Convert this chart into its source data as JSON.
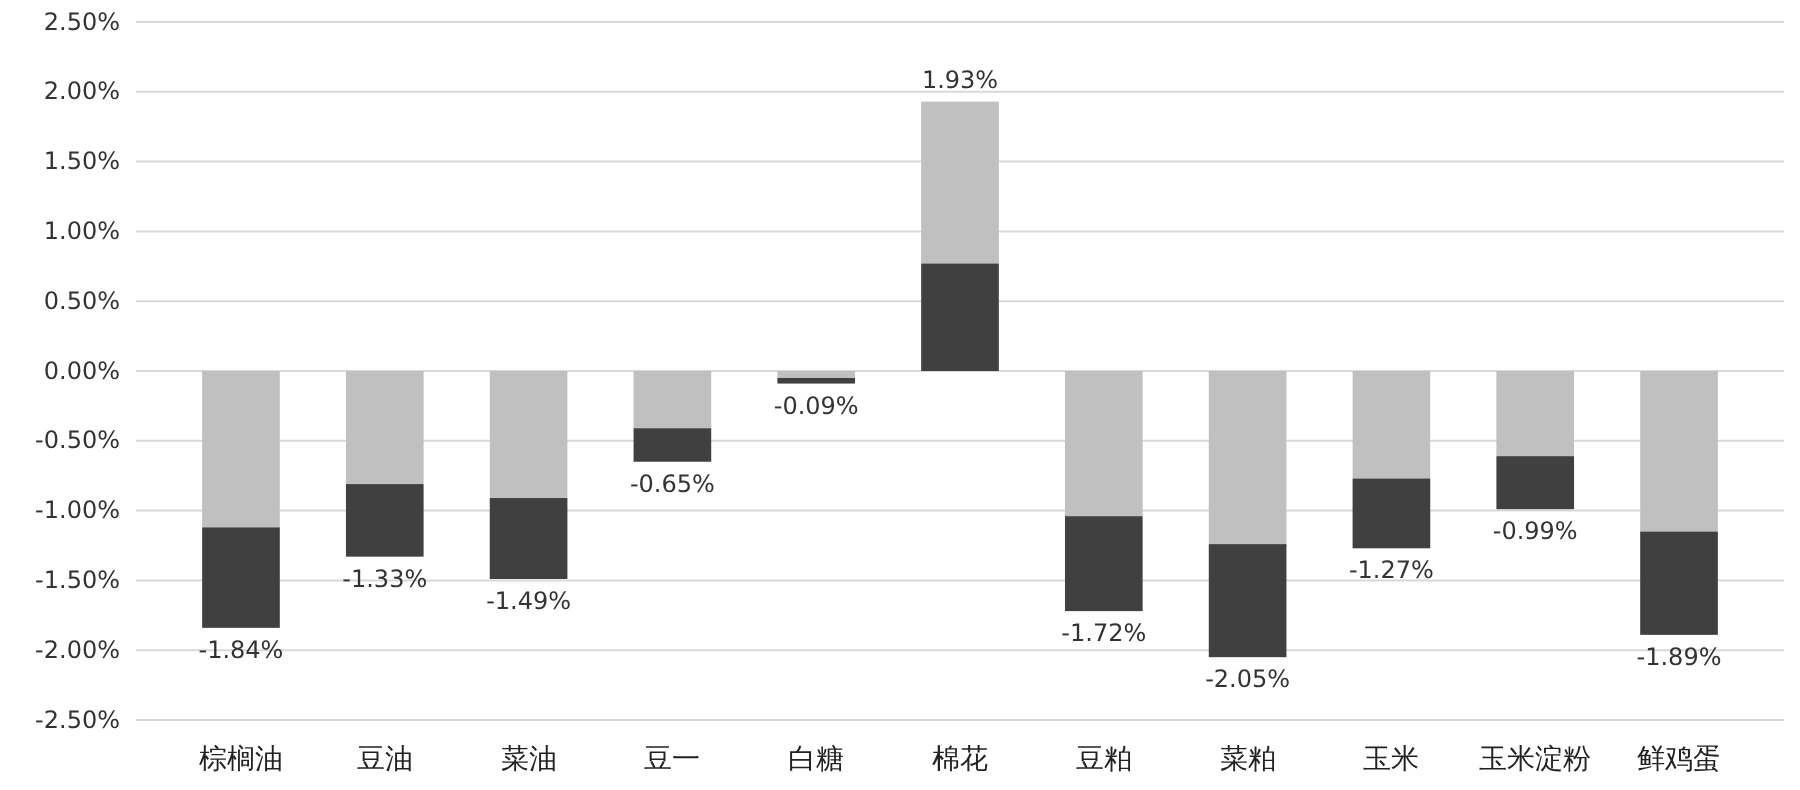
{
  "chart_data": {
    "type": "bar",
    "categories": [
      "棕榈油",
      "豆油",
      "菜油",
      "豆一",
      "白糖",
      "棉花",
      "豆粕",
      "菜粕",
      "玉米",
      "玉米淀粉",
      "鲜鸡蛋"
    ],
    "series": [
      {
        "color": "#c0c0c0",
        "values": [
          -1.12,
          -0.81,
          -0.91,
          -0.41,
          -0.05,
          1.16,
          -1.04,
          -1.24,
          -0.77,
          -0.61,
          -1.15
        ],
        "base": [
          0,
          0,
          0,
          0,
          0,
          0.77,
          0,
          0,
          0,
          0,
          0
        ]
      },
      {
        "color": "#404040",
        "values": [
          -0.72,
          -0.52,
          -0.58,
          -0.24,
          -0.04,
          0.77,
          -0.68,
          -0.81,
          -0.5,
          -0.38,
          -0.74
        ],
        "base": [
          -1.12,
          -0.81,
          -0.91,
          -0.41,
          -0.05,
          0,
          -1.04,
          -1.24,
          -0.77,
          -0.61,
          -1.15
        ]
      }
    ],
    "totals": [
      "-1.84%",
      "-1.33%",
      "-1.49%",
      "-0.65%",
      "-0.09%",
      "1.93%",
      "-1.72%",
      "-2.05%",
      "-1.27%",
      "-0.99%",
      "-1.89%"
    ],
    "ylim": [
      -2.5,
      2.5
    ],
    "yticks": [
      {
        "value": -2.5,
        "label": "-2.50%"
      },
      {
        "value": -2,
        "label": "-2.00%"
      },
      {
        "value": -1.5,
        "label": "-1.50%"
      },
      {
        "value": -1,
        "label": "-1.00%"
      },
      {
        "value": -0.5,
        "label": "-0.50%"
      },
      {
        "value": 0,
        "label": "0.00%"
      },
      {
        "value": 0.5,
        "label": "0.50%"
      },
      {
        "value": 1,
        "label": "1.00%"
      },
      {
        "value": 1.5,
        "label": "1.50%"
      },
      {
        "value": 2,
        "label": "2.00%"
      },
      {
        "value": 2.5,
        "label": "2.50%"
      }
    ],
    "grid": "y"
  }
}
